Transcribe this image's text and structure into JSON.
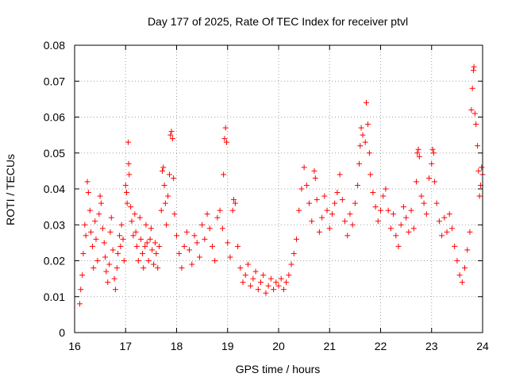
{
  "chart_data": {
    "type": "scatter",
    "title": "Day 177 of 2025, Rate Of TEC Index for receiver ptvl",
    "xlabel": "GPS time / hours",
    "ylabel": "ROTI / TECUs",
    "xlim": [
      16,
      24
    ],
    "ylim": [
      0,
      0.08
    ],
    "xticks": [
      16,
      17,
      18,
      19,
      20,
      21,
      22,
      23,
      24
    ],
    "yticks": [
      0,
      0.01,
      0.02,
      0.03,
      0.04,
      0.05,
      0.06,
      0.07,
      0.08
    ],
    "ytick_labels": [
      "0",
      "0.01",
      "0.02",
      "0.03",
      "0.04",
      "0.05",
      "0.06",
      "0.07",
      "0.08"
    ],
    "grid": true,
    "marker": "+",
    "point_color": "#ff0000",
    "series": [
      {
        "name": "ROTI",
        "points": [
          [
            16.1,
            0.008
          ],
          [
            16.12,
            0.012
          ],
          [
            16.15,
            0.016
          ],
          [
            16.17,
            0.022
          ],
          [
            16.2,
            0.03
          ],
          [
            16.22,
            0.027
          ],
          [
            16.25,
            0.042
          ],
          [
            16.27,
            0.039
          ],
          [
            16.3,
            0.034
          ],
          [
            16.32,
            0.028
          ],
          [
            16.35,
            0.024
          ],
          [
            16.37,
            0.018
          ],
          [
            16.4,
            0.031
          ],
          [
            16.42,
            0.026
          ],
          [
            16.45,
            0.02
          ],
          [
            16.48,
            0.033
          ],
          [
            16.5,
            0.038
          ],
          [
            16.52,
            0.036
          ],
          [
            16.55,
            0.029
          ],
          [
            16.58,
            0.025
          ],
          [
            16.6,
            0.021
          ],
          [
            16.62,
            0.017
          ],
          [
            16.65,
            0.014
          ],
          [
            16.68,
            0.019
          ],
          [
            16.7,
            0.028
          ],
          [
            16.72,
            0.032
          ],
          [
            16.75,
            0.023
          ],
          [
            16.78,
            0.015
          ],
          [
            16.8,
            0.012
          ],
          [
            16.83,
            0.018
          ],
          [
            16.85,
            0.022
          ],
          [
            16.88,
            0.027
          ],
          [
            16.9,
            0.024
          ],
          [
            16.92,
            0.03
          ],
          [
            16.95,
            0.026
          ],
          [
            16.97,
            0.02
          ],
          [
            17.0,
            0.041
          ],
          [
            17.02,
            0.039
          ],
          [
            17.03,
            0.036
          ],
          [
            17.05,
            0.053
          ],
          [
            17.06,
            0.047
          ],
          [
            17.07,
            0.044
          ],
          [
            17.1,
            0.035
          ],
          [
            17.12,
            0.031
          ],
          [
            17.15,
            0.027
          ],
          [
            17.18,
            0.033
          ],
          [
            17.2,
            0.028
          ],
          [
            17.22,
            0.024
          ],
          [
            17.25,
            0.02
          ],
          [
            17.28,
            0.032
          ],
          [
            17.3,
            0.026
          ],
          [
            17.33,
            0.022
          ],
          [
            17.35,
            0.018
          ],
          [
            17.38,
            0.024
          ],
          [
            17.4,
            0.03
          ],
          [
            17.42,
            0.025
          ],
          [
            17.45,
            0.02
          ],
          [
            17.48,
            0.026
          ],
          [
            17.5,
            0.029
          ],
          [
            17.52,
            0.023
          ],
          [
            17.55,
            0.019
          ],
          [
            17.58,
            0.025
          ],
          [
            17.6,
            0.022
          ],
          [
            17.63,
            0.018
          ],
          [
            17.66,
            0.024
          ],
          [
            17.7,
            0.034
          ],
          [
            17.72,
            0.045
          ],
          [
            17.74,
            0.046
          ],
          [
            17.76,
            0.041
          ],
          [
            17.78,
            0.036
          ],
          [
            17.8,
            0.03
          ],
          [
            17.83,
            0.038
          ],
          [
            17.86,
            0.044
          ],
          [
            17.88,
            0.055
          ],
          [
            17.9,
            0.056
          ],
          [
            17.92,
            0.054
          ],
          [
            17.94,
            0.043
          ],
          [
            17.96,
            0.033
          ],
          [
            18.0,
            0.027
          ],
          [
            18.05,
            0.022
          ],
          [
            18.1,
            0.018
          ],
          [
            18.15,
            0.024
          ],
          [
            18.2,
            0.028
          ],
          [
            18.25,
            0.023
          ],
          [
            18.3,
            0.019
          ],
          [
            18.35,
            0.027
          ],
          [
            18.4,
            0.025
          ],
          [
            18.45,
            0.021
          ],
          [
            18.5,
            0.03
          ],
          [
            18.55,
            0.026
          ],
          [
            18.6,
            0.033
          ],
          [
            18.65,
            0.029
          ],
          [
            18.7,
            0.024
          ],
          [
            18.75,
            0.02
          ],
          [
            18.8,
            0.032
          ],
          [
            18.85,
            0.034
          ],
          [
            18.9,
            0.029
          ],
          [
            18.92,
            0.044
          ],
          [
            18.94,
            0.054
          ],
          [
            18.96,
            0.057
          ],
          [
            18.98,
            0.053
          ],
          [
            19.0,
            0.025
          ],
          [
            19.05,
            0.021
          ],
          [
            19.1,
            0.034
          ],
          [
            19.12,
            0.037
          ],
          [
            19.15,
            0.036
          ],
          [
            19.2,
            0.024
          ],
          [
            19.25,
            0.018
          ],
          [
            19.3,
            0.014
          ],
          [
            19.35,
            0.016
          ],
          [
            19.4,
            0.019
          ],
          [
            19.45,
            0.013
          ],
          [
            19.5,
            0.015
          ],
          [
            19.55,
            0.017
          ],
          [
            19.6,
            0.012
          ],
          [
            19.65,
            0.014
          ],
          [
            19.7,
            0.016
          ],
          [
            19.75,
            0.011
          ],
          [
            19.8,
            0.013
          ],
          [
            19.85,
            0.015
          ],
          [
            19.9,
            0.012
          ],
          [
            19.95,
            0.014
          ],
          [
            20.0,
            0.013
          ],
          [
            20.05,
            0.015
          ],
          [
            20.1,
            0.012
          ],
          [
            20.15,
            0.014
          ],
          [
            20.2,
            0.016
          ],
          [
            20.25,
            0.019
          ],
          [
            20.3,
            0.022
          ],
          [
            20.35,
            0.026
          ],
          [
            20.4,
            0.034
          ],
          [
            20.45,
            0.04
          ],
          [
            20.5,
            0.046
          ],
          [
            20.55,
            0.041
          ],
          [
            20.6,
            0.036
          ],
          [
            20.65,
            0.031
          ],
          [
            20.7,
            0.045
          ],
          [
            20.72,
            0.043
          ],
          [
            20.75,
            0.037
          ],
          [
            20.8,
            0.028
          ],
          [
            20.85,
            0.032
          ],
          [
            20.9,
            0.038
          ],
          [
            20.95,
            0.034
          ],
          [
            21.0,
            0.029
          ],
          [
            21.05,
            0.033
          ],
          [
            21.1,
            0.036
          ],
          [
            21.15,
            0.039
          ],
          [
            21.2,
            0.044
          ],
          [
            21.25,
            0.037
          ],
          [
            21.3,
            0.031
          ],
          [
            21.35,
            0.027
          ],
          [
            21.4,
            0.033
          ],
          [
            21.45,
            0.03
          ],
          [
            21.5,
            0.036
          ],
          [
            21.55,
            0.041
          ],
          [
            21.58,
            0.047
          ],
          [
            21.6,
            0.052
          ],
          [
            21.62,
            0.057
          ],
          [
            21.65,
            0.055
          ],
          [
            21.7,
            0.053
          ],
          [
            21.72,
            0.064
          ],
          [
            21.75,
            0.058
          ],
          [
            21.78,
            0.05
          ],
          [
            21.8,
            0.044
          ],
          [
            21.85,
            0.039
          ],
          [
            21.9,
            0.035
          ],
          [
            21.95,
            0.031
          ],
          [
            22.0,
            0.034
          ],
          [
            22.05,
            0.038
          ],
          [
            22.1,
            0.04
          ],
          [
            22.15,
            0.034
          ],
          [
            22.2,
            0.029
          ],
          [
            22.25,
            0.033
          ],
          [
            22.3,
            0.027
          ],
          [
            22.35,
            0.024
          ],
          [
            22.4,
            0.03
          ],
          [
            22.45,
            0.035
          ],
          [
            22.5,
            0.032
          ],
          [
            22.55,
            0.028
          ],
          [
            22.6,
            0.034
          ],
          [
            22.65,
            0.029
          ],
          [
            22.7,
            0.042
          ],
          [
            22.72,
            0.05
          ],
          [
            22.74,
            0.051
          ],
          [
            22.76,
            0.049
          ],
          [
            22.8,
            0.038
          ],
          [
            22.85,
            0.036
          ],
          [
            22.9,
            0.033
          ],
          [
            22.95,
            0.043
          ],
          [
            23.0,
            0.047
          ],
          [
            23.02,
            0.051
          ],
          [
            23.04,
            0.05
          ],
          [
            23.06,
            0.042
          ],
          [
            23.1,
            0.036
          ],
          [
            23.15,
            0.031
          ],
          [
            23.2,
            0.027
          ],
          [
            23.25,
            0.032
          ],
          [
            23.3,
            0.028
          ],
          [
            23.35,
            0.033
          ],
          [
            23.4,
            0.029
          ],
          [
            23.45,
            0.024
          ],
          [
            23.5,
            0.02
          ],
          [
            23.55,
            0.016
          ],
          [
            23.6,
            0.014
          ],
          [
            23.65,
            0.018
          ],
          [
            23.7,
            0.023
          ],
          [
            23.75,
            0.028
          ],
          [
            23.78,
            0.062
          ],
          [
            23.8,
            0.068
          ],
          [
            23.82,
            0.073
          ],
          [
            23.83,
            0.074
          ],
          [
            23.85,
            0.061
          ],
          [
            23.87,
            0.058
          ],
          [
            23.9,
            0.052
          ],
          [
            23.92,
            0.045
          ],
          [
            23.94,
            0.038
          ],
          [
            23.96,
            0.041
          ],
          [
            23.98,
            0.046
          ],
          [
            24.0,
            0.044
          ]
        ]
      }
    ]
  }
}
